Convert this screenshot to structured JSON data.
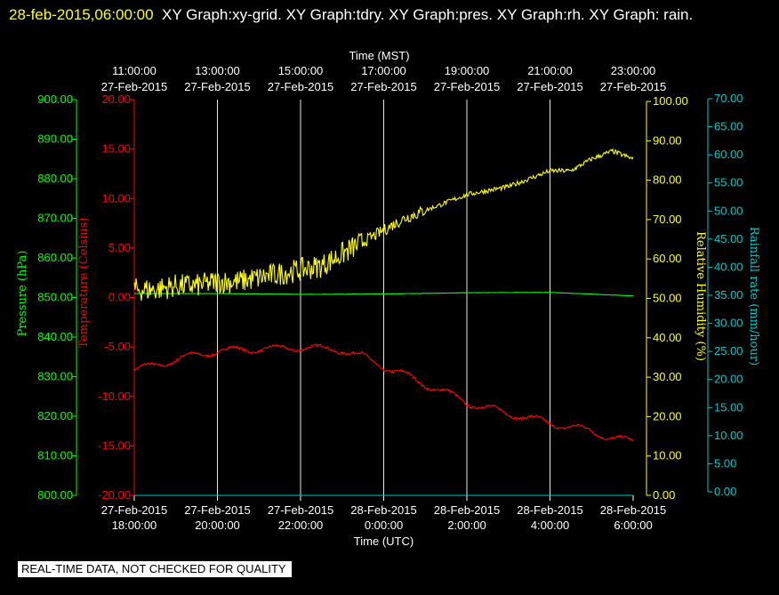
{
  "title": {
    "timestamp": "28-feb-2015,06:00:00",
    "text": "XY Graph:xy-grid.  XY Graph:tdry.  XY Graph:pres.  XY Graph:rh.  XY Graph: rain."
  },
  "notice": "REAL-TIME DATA, NOT CHECKED FOR QUALITY",
  "colors": {
    "background": "#000000",
    "pressure": "#00ff00",
    "temperature": "#ff0000",
    "humidity": "#ffff00",
    "rainfall": "#00c8c8",
    "grid": "#ffffff"
  },
  "chart_data": {
    "type": "line",
    "grid": true,
    "x_bottom": {
      "label": "Time (UTC)",
      "ticks": [
        {
          "date": "27-Feb-2015",
          "time": "18:00:00"
        },
        {
          "date": "27-Feb-2015",
          "time": "20:00:00"
        },
        {
          "date": "27-Feb-2015",
          "time": "22:00:00"
        },
        {
          "date": "28-Feb-2015",
          "time": "0:00:00"
        },
        {
          "date": "28-Feb-2015",
          "time": "2:00:00"
        },
        {
          "date": "28-Feb-2015",
          "time": "4:00:00"
        },
        {
          "date": "28-Feb-2015",
          "time": "6:00:00"
        }
      ]
    },
    "x_top": {
      "label": "Time (MST)",
      "ticks": [
        {
          "time": "11:00:00",
          "date": "27-Feb-2015"
        },
        {
          "time": "13:00:00",
          "date": "27-Feb-2015"
        },
        {
          "time": "15:00:00",
          "date": "27-Feb-2015"
        },
        {
          "time": "17:00:00",
          "date": "27-Feb-2015"
        },
        {
          "time": "19:00:00",
          "date": "27-Feb-2015"
        },
        {
          "time": "21:00:00",
          "date": "27-Feb-2015"
        },
        {
          "time": "23:00:00",
          "date": "27-Feb-2015"
        }
      ]
    },
    "axes": {
      "pressure": {
        "label": "Pressure (hPa)",
        "ylim": [
          800,
          900
        ],
        "ticks": [
          "800.00",
          "810.00",
          "820.00",
          "830.00",
          "840.00",
          "850.00",
          "860.00",
          "870.00",
          "880.00",
          "890.00",
          "900.00"
        ]
      },
      "temperature": {
        "label": "Temperature (Celsius)",
        "ylim": [
          -20,
          20
        ],
        "ticks": [
          "-20.00",
          "-15.00",
          "-10.00",
          "-5.00",
          "0.00",
          "5.00",
          "10.00",
          "15.00",
          "20.00"
        ]
      },
      "humidity": {
        "label": "Relative Humidity (%)",
        "ylim": [
          0,
          100
        ],
        "ticks": [
          "0.00",
          "10.00",
          "20.00",
          "30.00",
          "40.00",
          "50.00",
          "60.00",
          "70.00",
          "80.00",
          "90.00",
          "100.00"
        ]
      },
      "rainfall": {
        "label": "Rainfall rate (mm/hour)",
        "ylim": [
          0,
          70
        ],
        "ticks": [
          "0.00",
          "5.00",
          "10.00",
          "15.00",
          "20.00",
          "25.00",
          "30.00",
          "35.00",
          "40.00",
          "45.00",
          "50.00",
          "55.00",
          "60.00",
          "65.00",
          "70.00"
        ]
      }
    },
    "x_unit": "hours since 27-Feb-2015 18:00 UTC",
    "series": [
      {
        "name": "Temperature (Celsius)",
        "axis": "temperature",
        "x": [
          0,
          0.5,
          1,
          1.5,
          2,
          2.5,
          3,
          3.5,
          4,
          4.5,
          5,
          5.5,
          6,
          6.5,
          7,
          7.5,
          8,
          8.5,
          9,
          9.5,
          10,
          10.5,
          11,
          11.5,
          12
        ],
        "values": [
          -7.4,
          -6.8,
          -6.3,
          -5.8,
          -5.4,
          -5.3,
          -5.2,
          -5.2,
          -5.0,
          -5.2,
          -5.3,
          -6.0,
          -7.0,
          -7.8,
          -8.8,
          -9.6,
          -10.6,
          -11.2,
          -11.7,
          -12.2,
          -12.7,
          -13.1,
          -13.5,
          -14.2,
          -14.6
        ]
      },
      {
        "name": "Pressure (hPa)",
        "axis": "pressure",
        "x": [
          0,
          2,
          4,
          6,
          8,
          10,
          12
        ],
        "values": [
          851.0,
          851.0,
          850.8,
          850.9,
          851.2,
          851.3,
          850.4
        ]
      },
      {
        "name": "Relative Humidity (%)",
        "axis": "humidity",
        "x": [
          0,
          0.5,
          1,
          1.5,
          2,
          2.5,
          3,
          3.5,
          4,
          4.5,
          5,
          5.5,
          6,
          6.5,
          7,
          7.5,
          8,
          8.5,
          9,
          9.5,
          10,
          10.5,
          11,
          11.5,
          12
        ],
        "values": [
          52,
          52,
          53,
          53,
          54,
          54,
          55,
          56,
          57,
          58,
          61,
          64,
          67,
          70,
          72,
          74,
          76,
          77,
          78,
          80,
          82,
          82,
          85,
          87,
          85
        ]
      },
      {
        "name": "Rainfall rate (mm/hour)",
        "axis": "rainfall",
        "x": [
          0,
          12
        ],
        "values": [
          0,
          0
        ]
      }
    ]
  }
}
